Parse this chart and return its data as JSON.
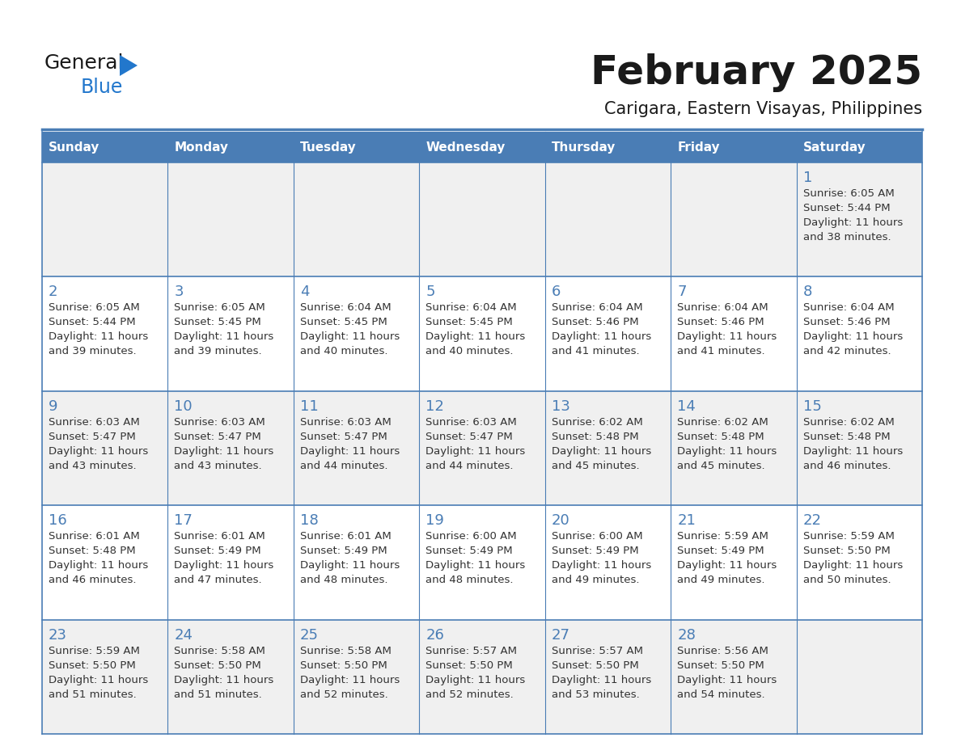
{
  "title": "February 2025",
  "subtitle": "Carigara, Eastern Visayas, Philippines",
  "header_color": "#4a7db5",
  "header_text_color": "#ffffff",
  "cell_bg_light": "#f0f0f0",
  "cell_bg_white": "#ffffff",
  "border_color": "#4a7db5",
  "text_color": "#333333",
  "day_number_color": "#4a7db5",
  "logo_text_color": "#222222",
  "logo_blue_color": "#2277cc",
  "day_headers": [
    "Sunday",
    "Monday",
    "Tuesday",
    "Wednesday",
    "Thursday",
    "Friday",
    "Saturday"
  ],
  "calendar_data": [
    [
      null,
      null,
      null,
      null,
      null,
      null,
      {
        "day": 1,
        "sunrise": "6:05 AM",
        "sunset": "5:44 PM",
        "daylight": "11 hours and 38 minutes."
      }
    ],
    [
      {
        "day": 2,
        "sunrise": "6:05 AM",
        "sunset": "5:44 PM",
        "daylight": "11 hours and 39 minutes."
      },
      {
        "day": 3,
        "sunrise": "6:05 AM",
        "sunset": "5:45 PM",
        "daylight": "11 hours and 39 minutes."
      },
      {
        "day": 4,
        "sunrise": "6:04 AM",
        "sunset": "5:45 PM",
        "daylight": "11 hours and 40 minutes."
      },
      {
        "day": 5,
        "sunrise": "6:04 AM",
        "sunset": "5:45 PM",
        "daylight": "11 hours and 40 minutes."
      },
      {
        "day": 6,
        "sunrise": "6:04 AM",
        "sunset": "5:46 PM",
        "daylight": "11 hours and 41 minutes."
      },
      {
        "day": 7,
        "sunrise": "6:04 AM",
        "sunset": "5:46 PM",
        "daylight": "11 hours and 41 minutes."
      },
      {
        "day": 8,
        "sunrise": "6:04 AM",
        "sunset": "5:46 PM",
        "daylight": "11 hours and 42 minutes."
      }
    ],
    [
      {
        "day": 9,
        "sunrise": "6:03 AM",
        "sunset": "5:47 PM",
        "daylight": "11 hours and 43 minutes."
      },
      {
        "day": 10,
        "sunrise": "6:03 AM",
        "sunset": "5:47 PM",
        "daylight": "11 hours and 43 minutes."
      },
      {
        "day": 11,
        "sunrise": "6:03 AM",
        "sunset": "5:47 PM",
        "daylight": "11 hours and 44 minutes."
      },
      {
        "day": 12,
        "sunrise": "6:03 AM",
        "sunset": "5:47 PM",
        "daylight": "11 hours and 44 minutes."
      },
      {
        "day": 13,
        "sunrise": "6:02 AM",
        "sunset": "5:48 PM",
        "daylight": "11 hours and 45 minutes."
      },
      {
        "day": 14,
        "sunrise": "6:02 AM",
        "sunset": "5:48 PM",
        "daylight": "11 hours and 45 minutes."
      },
      {
        "day": 15,
        "sunrise": "6:02 AM",
        "sunset": "5:48 PM",
        "daylight": "11 hours and 46 minutes."
      }
    ],
    [
      {
        "day": 16,
        "sunrise": "6:01 AM",
        "sunset": "5:48 PM",
        "daylight": "11 hours and 46 minutes."
      },
      {
        "day": 17,
        "sunrise": "6:01 AM",
        "sunset": "5:49 PM",
        "daylight": "11 hours and 47 minutes."
      },
      {
        "day": 18,
        "sunrise": "6:01 AM",
        "sunset": "5:49 PM",
        "daylight": "11 hours and 48 minutes."
      },
      {
        "day": 19,
        "sunrise": "6:00 AM",
        "sunset": "5:49 PM",
        "daylight": "11 hours and 48 minutes."
      },
      {
        "day": 20,
        "sunrise": "6:00 AM",
        "sunset": "5:49 PM",
        "daylight": "11 hours and 49 minutes."
      },
      {
        "day": 21,
        "sunrise": "5:59 AM",
        "sunset": "5:49 PM",
        "daylight": "11 hours and 49 minutes."
      },
      {
        "day": 22,
        "sunrise": "5:59 AM",
        "sunset": "5:50 PM",
        "daylight": "11 hours and 50 minutes."
      }
    ],
    [
      {
        "day": 23,
        "sunrise": "5:59 AM",
        "sunset": "5:50 PM",
        "daylight": "11 hours and 51 minutes."
      },
      {
        "day": 24,
        "sunrise": "5:58 AM",
        "sunset": "5:50 PM",
        "daylight": "11 hours and 51 minutes."
      },
      {
        "day": 25,
        "sunrise": "5:58 AM",
        "sunset": "5:50 PM",
        "daylight": "11 hours and 52 minutes."
      },
      {
        "day": 26,
        "sunrise": "5:57 AM",
        "sunset": "5:50 PM",
        "daylight": "11 hours and 52 minutes."
      },
      {
        "day": 27,
        "sunrise": "5:57 AM",
        "sunset": "5:50 PM",
        "daylight": "11 hours and 53 minutes."
      },
      {
        "day": 28,
        "sunrise": "5:56 AM",
        "sunset": "5:50 PM",
        "daylight": "11 hours and 54 minutes."
      },
      null
    ]
  ]
}
